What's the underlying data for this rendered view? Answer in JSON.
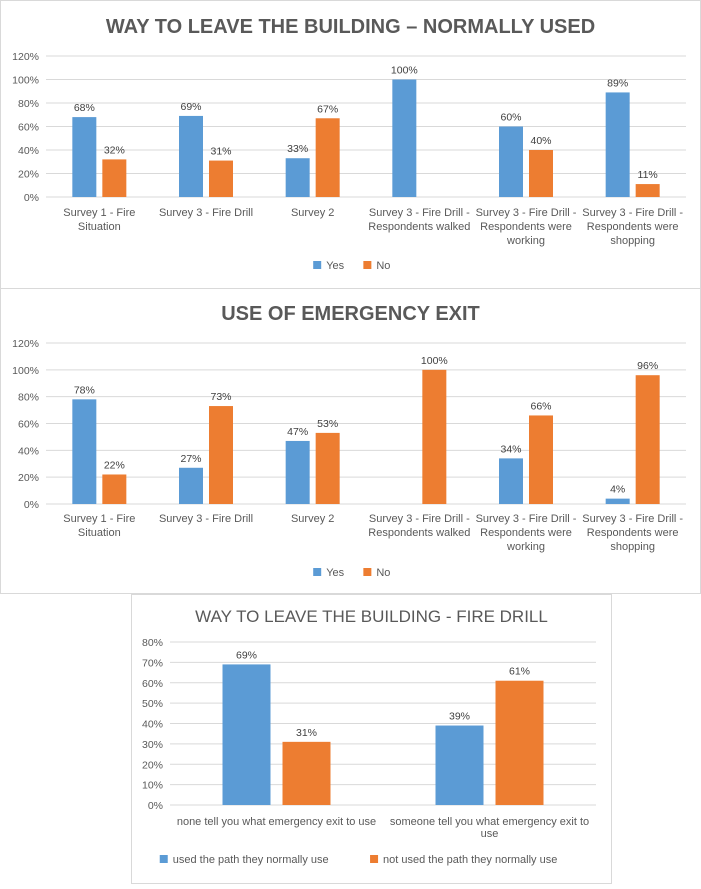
{
  "colors": {
    "blue": "#5b9bd5",
    "orange": "#ed7d31",
    "grid": "#d9d9d9",
    "axis_text": "#595959",
    "title_text": "#595959"
  },
  "chart_data": [
    {
      "type": "bar",
      "title": "WAY TO LEAVE THE BUILDING – NORMALLY USED",
      "categories": [
        [
          "Survey 1 - Fire",
          "Situation"
        ],
        [
          "Survey 3 - Fire Drill"
        ],
        [
          "Survey 2"
        ],
        [
          "Survey 3 - Fire Drill -",
          "Respondents walked"
        ],
        [
          "Survey 3 - Fire Drill -",
          "Respondents were",
          "working"
        ],
        [
          "Survey 3 - Fire Drill -",
          "Respondents were",
          "shopping"
        ]
      ],
      "series": [
        {
          "name": "Yes",
          "values": [
            68,
            69,
            33,
            100,
            60,
            89
          ],
          "labels": [
            "68%",
            "69%",
            "33%",
            "100%",
            "60%",
            "89%"
          ]
        },
        {
          "name": "No",
          "values": [
            32,
            31,
            67,
            0,
            40,
            11
          ],
          "labels": [
            "32%",
            "31%",
            "67%",
            "",
            "40%",
            "11%"
          ]
        }
      ],
      "yticks": [
        "0%",
        "20%",
        "40%",
        "60%",
        "80%",
        "100%",
        "120%"
      ],
      "ylim": [
        0,
        120
      ],
      "grid": true,
      "legend": "bottom"
    },
    {
      "type": "bar",
      "title": "USE OF EMERGENCY EXIT",
      "categories": [
        [
          "Survey 1 - Fire",
          "Situation"
        ],
        [
          "Survey 3 - Fire Drill"
        ],
        [
          "Survey 2"
        ],
        [
          "Survey 3 - Fire Drill -",
          "Respondents walked"
        ],
        [
          "Survey 3 - Fire Drill -",
          "Respondents were",
          "working"
        ],
        [
          "Survey 3 - Fire Drill -",
          "Respondents were",
          "shopping"
        ]
      ],
      "series": [
        {
          "name": "Yes",
          "values": [
            78,
            27,
            47,
            0,
            34,
            4
          ],
          "labels": [
            "78%",
            "27%",
            "47%",
            "",
            "34%",
            "4%"
          ]
        },
        {
          "name": "No",
          "values": [
            22,
            73,
            53,
            100,
            66,
            96
          ],
          "labels": [
            "22%",
            "73%",
            "53%",
            "100%",
            "66%",
            "96%"
          ]
        }
      ],
      "yticks": [
        "0%",
        "20%",
        "40%",
        "60%",
        "80%",
        "100%",
        "120%"
      ],
      "ylim": [
        0,
        120
      ],
      "grid": true,
      "legend": "bottom"
    },
    {
      "type": "bar",
      "title": "WAY TO LEAVE THE BUILDING  - FIRE DRILL",
      "categories": [
        [
          "none tell you what emergency exit to use"
        ],
        [
          "someone tell you what emergency exit to",
          "use"
        ]
      ],
      "series": [
        {
          "name": "used the path they normally use",
          "values": [
            69,
            39
          ],
          "labels": [
            "69%",
            "39%"
          ]
        },
        {
          "name": "not used the path they normally use",
          "values": [
            31,
            61
          ],
          "labels": [
            "31%",
            "61%"
          ]
        }
      ],
      "yticks": [
        "0%",
        "10%",
        "20%",
        "30%",
        "40%",
        "50%",
        "60%",
        "70%",
        "80%"
      ],
      "ylim": [
        0,
        80
      ],
      "grid": true,
      "legend": "bottom"
    }
  ]
}
